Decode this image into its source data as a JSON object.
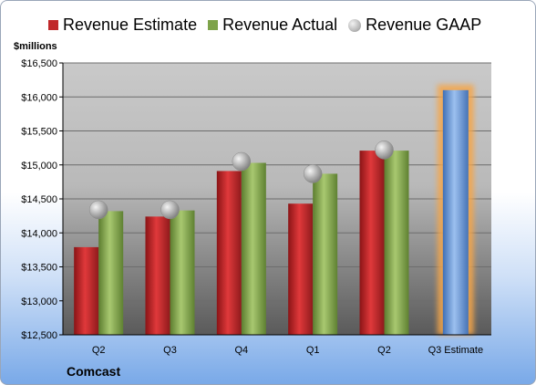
{
  "chart_data": {
    "type": "bar",
    "unit_label": "$millions",
    "company": "Comcast",
    "categories": [
      "Q2",
      "Q3",
      "Q4",
      "Q1",
      "Q2",
      "Q3 Estimate"
    ],
    "series": [
      {
        "name": "Revenue Estimate",
        "kind": "bar",
        "color": "#c0282a",
        "values": [
          13790,
          14240,
          14910,
          14430,
          15210,
          null
        ]
      },
      {
        "name": "Revenue Actual",
        "kind": "bar",
        "color": "#7ea34a",
        "values": [
          14320,
          14330,
          15030,
          14870,
          15210,
          null
        ]
      },
      {
        "name": "Revenue GAAP",
        "kind": "marker",
        "color": "#a9a9a9",
        "values": [
          14340,
          14340,
          15050,
          14870,
          15220,
          null
        ]
      },
      {
        "name": "",
        "kind": "bar",
        "color": "#6f9fdb",
        "highlight": "#f5a64a",
        "values": [
          null,
          null,
          null,
          null,
          null,
          16100
        ]
      }
    ],
    "ylim": [
      12500,
      16500
    ],
    "yticks": [
      "$12,500",
      "$13,000",
      "$13,500",
      "$14,000",
      "$14,500",
      "$15,000",
      "$15,500",
      "$16,000",
      "$16,500"
    ],
    "ytick_values": [
      12500,
      13000,
      13500,
      14000,
      14500,
      15000,
      15500,
      16000,
      16500
    ],
    "grid": true,
    "legend_position": "top"
  }
}
